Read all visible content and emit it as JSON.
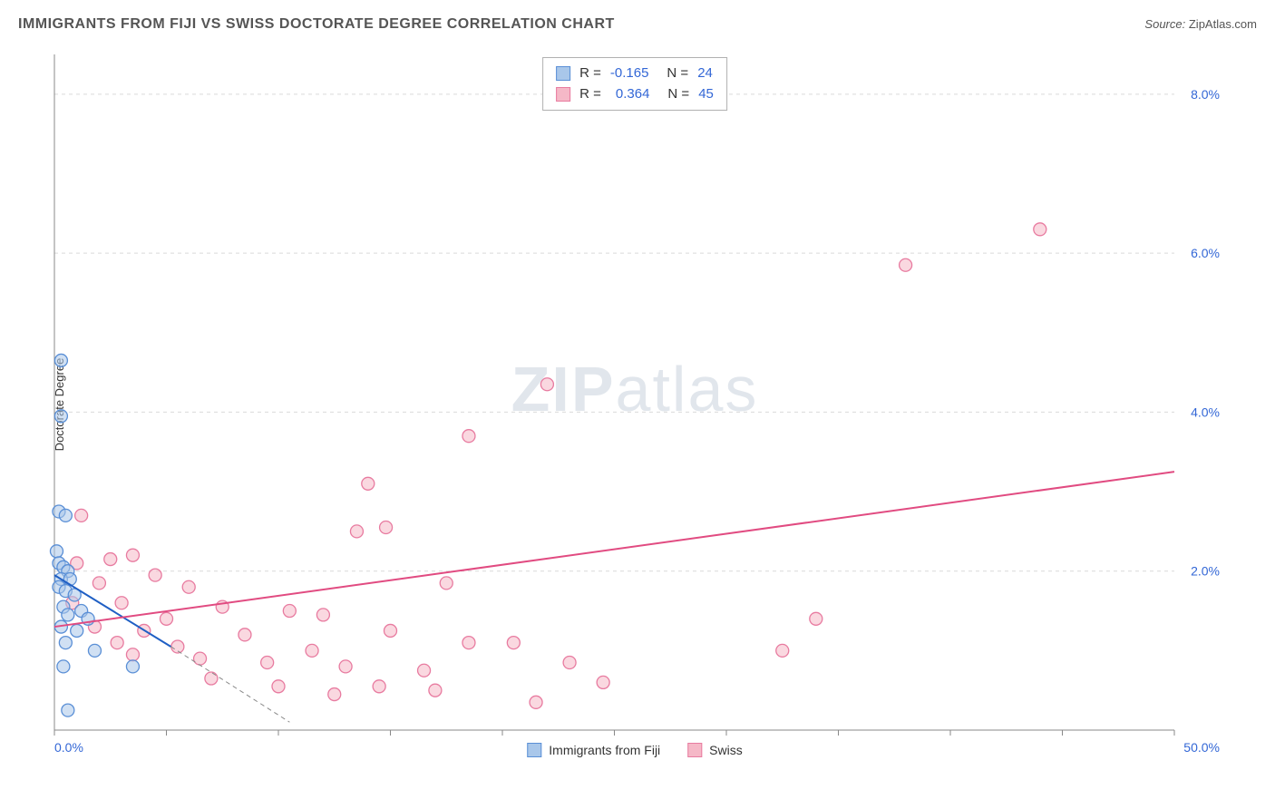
{
  "header": {
    "title": "IMMIGRANTS FROM FIJI VS SWISS DOCTORATE DEGREE CORRELATION CHART",
    "source_prefix": "Source:",
    "source_name": "ZipAtlas.com"
  },
  "axes": {
    "y_label": "Doctorate Degree",
    "x": {
      "min": 0,
      "max": 50,
      "ticks": [
        0,
        50
      ],
      "tick_labels": [
        "0.0%",
        "50.0%"
      ]
    },
    "y": {
      "min": 0,
      "max": 8.5,
      "grid": [
        2,
        4,
        6,
        8
      ],
      "tick_labels": [
        "2.0%",
        "4.0%",
        "6.0%",
        "8.0%"
      ]
    }
  },
  "watermark": {
    "zip": "ZIP",
    "atlas": "atlas"
  },
  "series": {
    "fiji": {
      "label": "Immigrants from Fiji",
      "fill": "#a9c7ea",
      "stroke": "#5a8fd6",
      "fill_opacity": 0.55,
      "R": "-0.165",
      "N": "24",
      "trend": {
        "x1": 0,
        "y1": 1.95,
        "x2": 5.2,
        "y2": 1.05,
        "color": "#1f5fc4",
        "width": 2,
        "dash_x1": 5.2,
        "dash_y1": 1.05,
        "dash_x2": 10.5,
        "dash_y2": 0.1
      },
      "points": [
        [
          0.3,
          4.65
        ],
        [
          0.3,
          3.95
        ],
        [
          0.2,
          2.75
        ],
        [
          0.5,
          2.7
        ],
        [
          0.1,
          2.25
        ],
        [
          0.2,
          2.1
        ],
        [
          0.4,
          2.05
        ],
        [
          0.6,
          2.0
        ],
        [
          0.3,
          1.9
        ],
        [
          0.7,
          1.9
        ],
        [
          0.2,
          1.8
        ],
        [
          0.5,
          1.75
        ],
        [
          0.9,
          1.7
        ],
        [
          0.4,
          1.55
        ],
        [
          1.2,
          1.5
        ],
        [
          0.6,
          1.45
        ],
        [
          1.5,
          1.4
        ],
        [
          0.3,
          1.3
        ],
        [
          1.0,
          1.25
        ],
        [
          0.5,
          1.1
        ],
        [
          1.8,
          1.0
        ],
        [
          0.4,
          0.8
        ],
        [
          3.5,
          0.8
        ],
        [
          0.6,
          0.25
        ]
      ]
    },
    "swiss": {
      "label": "Swiss",
      "fill": "#f5b8c7",
      "stroke": "#e87ba0",
      "fill_opacity": 0.55,
      "R": "0.364",
      "N": "45",
      "trend": {
        "x1": 0,
        "y1": 1.3,
        "x2": 50,
        "y2": 3.25,
        "color": "#e14b81",
        "width": 2
      },
      "points": [
        [
          44,
          6.3
        ],
        [
          38,
          5.85
        ],
        [
          1.2,
          2.7
        ],
        [
          22,
          4.35
        ],
        [
          18.5,
          3.7
        ],
        [
          2.5,
          2.15
        ],
        [
          3.5,
          2.2
        ],
        [
          14,
          3.1
        ],
        [
          14.8,
          2.55
        ],
        [
          13.5,
          2.5
        ],
        [
          1.0,
          2.1
        ],
        [
          4.5,
          1.95
        ],
        [
          2.0,
          1.85
        ],
        [
          6.0,
          1.8
        ],
        [
          17.5,
          1.85
        ],
        [
          3.0,
          1.6
        ],
        [
          7.5,
          1.55
        ],
        [
          10.5,
          1.5
        ],
        [
          5.0,
          1.4
        ],
        [
          12.0,
          1.45
        ],
        [
          34,
          1.4
        ],
        [
          4.0,
          1.25
        ],
        [
          8.5,
          1.2
        ],
        [
          15.0,
          1.25
        ],
        [
          18.5,
          1.1
        ],
        [
          20.5,
          1.1
        ],
        [
          11.5,
          1.0
        ],
        [
          3.5,
          0.95
        ],
        [
          6.5,
          0.9
        ],
        [
          9.5,
          0.85
        ],
        [
          13.0,
          0.8
        ],
        [
          16.5,
          0.75
        ],
        [
          23.0,
          0.85
        ],
        [
          32.5,
          1.0
        ],
        [
          7.0,
          0.65
        ],
        [
          10.0,
          0.55
        ],
        [
          14.5,
          0.55
        ],
        [
          17.0,
          0.5
        ],
        [
          24.5,
          0.6
        ],
        [
          21.5,
          0.35
        ],
        [
          1.8,
          1.3
        ],
        [
          2.8,
          1.1
        ],
        [
          5.5,
          1.05
        ],
        [
          0.8,
          1.6
        ],
        [
          12.5,
          0.45
        ]
      ]
    }
  },
  "style": {
    "background": "#ffffff",
    "grid_color": "#d9d9d9",
    "axis_color": "#888888",
    "marker_radius": 7,
    "title_color": "#555555",
    "value_color": "#3367d6"
  }
}
